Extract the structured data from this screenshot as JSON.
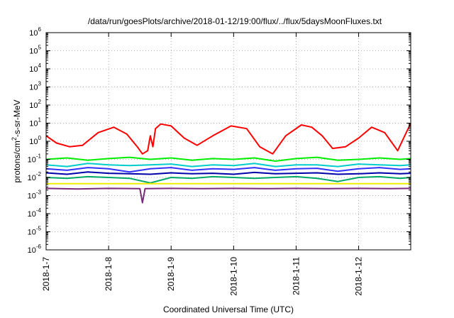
{
  "chart_data": {
    "type": "line",
    "title": "/data/run/goesPlots/archive/2018-01-12/19:00/flux/../flux/5daysMoonFluxes.txt",
    "xlabel": "Coordinated Universal Time (UTC)",
    "ylabel": "protons/cm²-s-sr-MeV",
    "ylabel_parts": {
      "pre": "protons/cm",
      "sup": "2",
      "post": "-s-sr-MeV"
    },
    "yscale": "log",
    "ylim": [
      1e-06,
      1000000.0
    ],
    "xlim": [
      "2018-01-07 00:00",
      "2018-01-12 20:00"
    ],
    "grid": true,
    "x_ticks": [
      "2018-1-7",
      "2018-1-8",
      "2018-1-9",
      "2018-1-10",
      "2018-1-11",
      "2018-1-12"
    ],
    "y_ticks": [
      {
        "base": "10",
        "exp": "6"
      },
      {
        "base": "10",
        "exp": "5"
      },
      {
        "base": "10",
        "exp": "4"
      },
      {
        "base": "10",
        "exp": "3"
      },
      {
        "base": "10",
        "exp": "2"
      },
      {
        "base": "10",
        "exp": "1"
      },
      {
        "base": "10",
        "exp": "0"
      },
      {
        "base": "10",
        "exp": "-1"
      },
      {
        "base": "10",
        "exp": "-2"
      },
      {
        "base": "10",
        "exp": "-3"
      },
      {
        "base": "10",
        "exp": "-4"
      },
      {
        "base": "10",
        "exp": "-5"
      },
      {
        "base": "10",
        "exp": "-6"
      }
    ],
    "series": [
      {
        "color": "#ff0000",
        "x": [
          "2018-01-07 00:00",
          "2018-01-07 04:00",
          "2018-01-07 09:00",
          "2018-01-07 14:00",
          "2018-01-07 20:00",
          "2018-01-08 02:00",
          "2018-01-08 07:00",
          "2018-01-08 11:00",
          "2018-01-08 13:00",
          "2018-01-08 15:00",
          "2018-01-08 16:00",
          "2018-01-08 17:00",
          "2018-01-08 18:00",
          "2018-01-08 20:00",
          "2018-01-09 00:00",
          "2018-01-09 05:00",
          "2018-01-09 10:00",
          "2018-01-09 16:00",
          "2018-01-09 23:00",
          "2018-01-10 05:00",
          "2018-01-10 10:00",
          "2018-01-10 15:00",
          "2018-01-10 20:00",
          "2018-01-11 02:00",
          "2018-01-11 06:00",
          "2018-01-11 10:00",
          "2018-01-11 14:00",
          "2018-01-11 19:00",
          "2018-01-12 00:00",
          "2018-01-12 05:00",
          "2018-01-12 10:00",
          "2018-01-12 15:00",
          "2018-01-12 20:00"
        ],
        "y": [
          2.0,
          0.8,
          0.5,
          0.6,
          3.0,
          6.0,
          2.5,
          0.5,
          0.2,
          0.3,
          2.0,
          0.5,
          5.0,
          9.0,
          7.0,
          1.5,
          0.6,
          2.0,
          7.0,
          5.0,
          0.5,
          0.2,
          2.0,
          8.0,
          6.0,
          2.0,
          0.4,
          0.5,
          1.5,
          6.0,
          3.0,
          0.3,
          10.0
        ]
      },
      {
        "color": "#00ee00",
        "x": [
          "2018-01-07 00:00",
          "2018-01-07 08:00",
          "2018-01-07 16:00",
          "2018-01-08 00:00",
          "2018-01-08 08:00",
          "2018-01-08 16:00",
          "2018-01-09 00:00",
          "2018-01-09 08:00",
          "2018-01-09 16:00",
          "2018-01-10 00:00",
          "2018-01-10 08:00",
          "2018-01-10 16:00",
          "2018-01-11 00:00",
          "2018-01-11 08:00",
          "2018-01-11 16:00",
          "2018-01-12 00:00",
          "2018-01-12 08:00",
          "2018-01-12 16:00",
          "2018-01-12 20:00"
        ],
        "y": [
          0.1,
          0.12,
          0.09,
          0.11,
          0.13,
          0.1,
          0.12,
          0.09,
          0.11,
          0.1,
          0.12,
          0.08,
          0.11,
          0.13,
          0.09,
          0.1,
          0.12,
          0.1,
          0.11
        ]
      },
      {
        "color": "#00cccc",
        "x": [
          "2018-01-07 00:00",
          "2018-01-07 08:00",
          "2018-01-07 16:00",
          "2018-01-08 00:00",
          "2018-01-08 08:00",
          "2018-01-08 16:00",
          "2018-01-09 00:00",
          "2018-01-09 08:00",
          "2018-01-09 16:00",
          "2018-01-10 00:00",
          "2018-01-10 08:00",
          "2018-01-10 16:00",
          "2018-01-11 00:00",
          "2018-01-11 08:00",
          "2018-01-11 16:00",
          "2018-01-12 00:00",
          "2018-01-12 08:00",
          "2018-01-12 16:00",
          "2018-01-12 20:00"
        ],
        "y": [
          0.05,
          0.04,
          0.06,
          0.05,
          0.045,
          0.05,
          0.055,
          0.04,
          0.05,
          0.045,
          0.06,
          0.04,
          0.05,
          0.05,
          0.04,
          0.055,
          0.05,
          0.045,
          0.05
        ]
      },
      {
        "color": "#3333ff",
        "x": [
          "2018-01-07 00:00",
          "2018-01-07 08:00",
          "2018-01-07 16:00",
          "2018-01-08 00:00",
          "2018-01-08 08:00",
          "2018-01-08 16:00",
          "2018-01-09 00:00",
          "2018-01-09 08:00",
          "2018-01-09 16:00",
          "2018-01-10 00:00",
          "2018-01-10 08:00",
          "2018-01-10 16:00",
          "2018-01-11 00:00",
          "2018-01-11 08:00",
          "2018-01-11 16:00",
          "2018-01-12 00:00",
          "2018-01-12 08:00",
          "2018-01-12 16:00",
          "2018-01-12 20:00"
        ],
        "y": [
          0.03,
          0.025,
          0.035,
          0.03,
          0.02,
          0.03,
          0.035,
          0.025,
          0.03,
          0.028,
          0.035,
          0.025,
          0.03,
          0.032,
          0.022,
          0.03,
          0.035,
          0.028,
          0.03
        ]
      },
      {
        "color": "#0000aa",
        "x": [
          "2018-01-07 00:00",
          "2018-01-07 08:00",
          "2018-01-07 16:00",
          "2018-01-08 00:00",
          "2018-01-08 08:00",
          "2018-01-08 16:00",
          "2018-01-09 00:00",
          "2018-01-09 08:00",
          "2018-01-09 16:00",
          "2018-01-10 00:00",
          "2018-01-10 08:00",
          "2018-01-10 16:00",
          "2018-01-11 00:00",
          "2018-01-11 08:00",
          "2018-01-11 16:00",
          "2018-01-12 00:00",
          "2018-01-12 08:00",
          "2018-01-12 16:00",
          "2018-01-12 20:00"
        ],
        "y": [
          0.018,
          0.015,
          0.02,
          0.017,
          0.016,
          0.015,
          0.018,
          0.016,
          0.017,
          0.015,
          0.019,
          0.016,
          0.017,
          0.018,
          0.015,
          0.016,
          0.018,
          0.016,
          0.017
        ]
      },
      {
        "color": "#00aa66",
        "x": [
          "2018-01-07 00:00",
          "2018-01-07 08:00",
          "2018-01-07 16:00",
          "2018-01-08 00:00",
          "2018-01-08 08:00",
          "2018-01-08 16:00",
          "2018-01-09 00:00",
          "2018-01-09 08:00",
          "2018-01-09 16:00",
          "2018-01-10 00:00",
          "2018-01-10 08:00",
          "2018-01-10 16:00",
          "2018-01-11 00:00",
          "2018-01-11 08:00",
          "2018-01-11 16:00",
          "2018-01-12 00:00",
          "2018-01-12 08:00",
          "2018-01-12 16:00",
          "2018-01-12 20:00"
        ],
        "y": [
          0.01,
          0.009,
          0.011,
          0.01,
          0.009,
          0.005,
          0.01,
          0.009,
          0.011,
          0.01,
          0.009,
          0.01,
          0.011,
          0.009,
          0.006,
          0.01,
          0.011,
          0.009,
          0.01
        ]
      },
      {
        "color": "#eeee00",
        "x": [
          "2018-01-07 00:00",
          "2018-01-08 00:00",
          "2018-01-09 00:00",
          "2018-01-10 00:00",
          "2018-01-11 00:00",
          "2018-01-12 00:00",
          "2018-01-12 20:00"
        ],
        "y": [
          0.0045,
          0.0045,
          0.0045,
          0.0045,
          0.0045,
          0.0045,
          0.0045
        ]
      },
      {
        "color": "#7a2a7a",
        "x": [
          "2018-01-07 00:00",
          "2018-01-07 12:00",
          "2018-01-08 00:00",
          "2018-01-08 12:00",
          "2018-01-08 13:00",
          "2018-01-08 14:00",
          "2018-01-09 00:00",
          "2018-01-09 12:00",
          "2018-01-10 00:00",
          "2018-01-10 12:00",
          "2018-01-11 00:00",
          "2018-01-11 12:00",
          "2018-01-12 00:00",
          "2018-01-12 12:00",
          "2018-01-12 20:00"
        ],
        "y": [
          0.0025,
          0.0023,
          0.0025,
          0.0024,
          0.0004,
          0.0024,
          0.0025,
          0.0024,
          0.0025,
          0.0024,
          0.0025,
          0.0024,
          0.0025,
          0.0024,
          0.0025
        ]
      }
    ]
  }
}
